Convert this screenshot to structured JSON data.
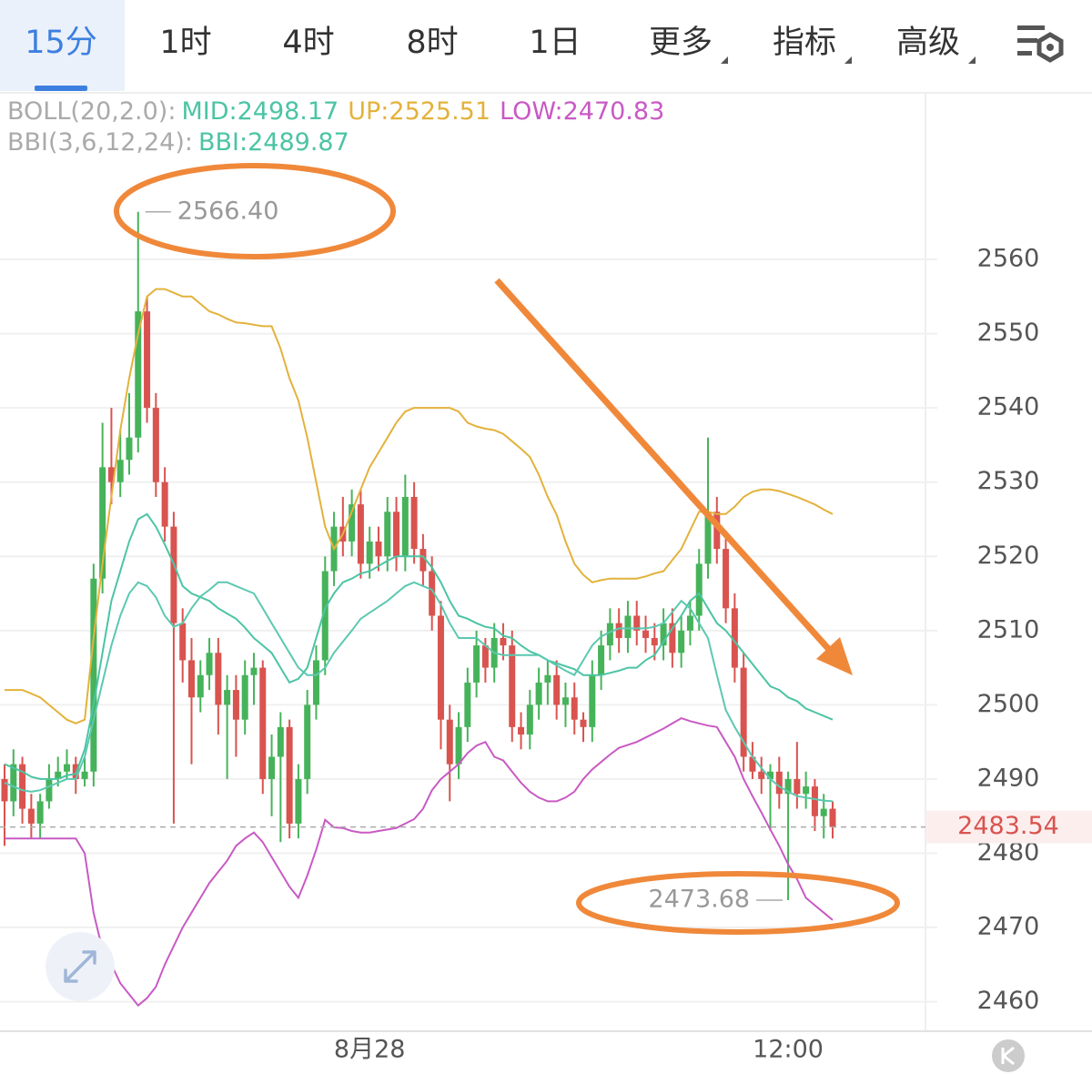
{
  "tabs": [
    "15分",
    "1时",
    "4时",
    "8时",
    "1日",
    "更多",
    "指标",
    "高级"
  ],
  "selected_tab": "15分",
  "menu_tabs": [
    "更多",
    "指标",
    "高级"
  ],
  "indicators": [
    {
      "label": "BOLL(20,2.0):",
      "items": [
        {
          "text": "MID:2498.17",
          "color": "#4cc4a4"
        },
        {
          "text": "UP:2525.51",
          "color": "#e3b23c"
        },
        {
          "text": "LOW:2470.83",
          "color": "#c85ac4"
        }
      ]
    },
    {
      "label": "BBI(3,6,12,24):",
      "items": [
        {
          "text": "BBI:2489.87",
          "color": "#4cc4a4"
        }
      ]
    }
  ],
  "chart_data": {
    "type": "candlestick",
    "categories": [
      null,
      null,
      null,
      null,
      null,
      null,
      null,
      null,
      null,
      null,
      null,
      null,
      null,
      null,
      null,
      null,
      null,
      null,
      null,
      null,
      null,
      null,
      null,
      null,
      null,
      null,
      null,
      null,
      null,
      null,
      null,
      null,
      null,
      null,
      null,
      null,
      null,
      null,
      null,
      null,
      null,
      "8月28",
      null,
      null,
      null,
      null,
      null,
      null,
      null,
      null,
      null,
      null,
      null,
      null,
      null,
      null,
      null,
      null,
      null,
      null,
      null,
      null,
      null,
      null,
      null,
      null,
      null,
      null,
      null,
      null,
      null,
      null,
      null,
      null,
      null,
      null,
      null,
      null,
      null,
      null,
      null,
      null,
      null,
      null,
      null,
      null,
      null,
      null,
      "12:00",
      null,
      null,
      null,
      null,
      null
    ],
    "open": [
      2490,
      2487,
      2492,
      2486,
      2484,
      2487,
      2490,
      2491,
      2492,
      2490,
      2491,
      2517,
      2532,
      2530,
      2533,
      2536,
      2553,
      2540,
      2530,
      2524,
      2511,
      2506,
      2501,
      2504,
      2507,
      2500,
      2502,
      2498,
      2504,
      2505,
      2490,
      2493,
      2497,
      2484,
      2490,
      2500,
      2506,
      2518,
      2524,
      2522,
      2527,
      2519,
      2522,
      2520,
      2526,
      2520,
      2528,
      2521,
      2518,
      2512,
      2498,
      2492,
      2497,
      2503,
      2508,
      2505,
      2509,
      2508,
      2497,
      2496,
      2500,
      2503,
      2504,
      2500,
      2501,
      2498,
      2497,
      2504,
      2508,
      2511,
      2509,
      2512,
      2510,
      2509,
      2508,
      2511,
      2507,
      2510,
      2512,
      2519,
      2526,
      2521,
      2513,
      2505,
      2493,
      2491,
      2490,
      2491,
      2488,
      2490,
      2488,
      2489,
      2485,
      2486
    ],
    "high": [
      2492,
      2494,
      2493,
      2488,
      2488,
      2492,
      2493,
      2494,
      2493,
      2493,
      2519,
      2538,
      2540,
      2537,
      2542,
      2566.4,
      2555,
      2542,
      2532,
      2526,
      2513,
      2509,
      2506,
      2509,
      2509,
      2504,
      2504,
      2506,
      2507,
      2506,
      2496,
      2499,
      2498,
      2492,
      2502,
      2508,
      2520,
      2526,
      2528,
      2529,
      2529,
      2524,
      2524,
      2528,
      2528,
      2531,
      2530,
      2523,
      2520,
      2514,
      2500,
      2499,
      2505,
      2510,
      2509,
      2511,
      2511,
      2510,
      2499,
      2502,
      2505,
      2506,
      2506,
      2503,
      2503,
      2499,
      2506,
      2510,
      2513,
      2513,
      2514,
      2514,
      2512,
      2511,
      2513,
      2513,
      2512,
      2514,
      2521,
      2536,
      2528,
      2523,
      2515,
      2507,
      2495,
      2493,
      2492,
      2493,
      2491,
      2495,
      2491,
      2490,
      2488,
      2487
    ],
    "low": [
      2481,
      2485,
      2484,
      2482,
      2482,
      2486,
      2489,
      2490,
      2488,
      2489,
      2489,
      2515,
      2527,
      2528,
      2531,
      2534,
      2538,
      2528,
      2522,
      2484,
      2503,
      2492,
      2499,
      2502,
      2496,
      2490,
      2493,
      2496,
      2500,
      2488,
      2485,
      2481.5,
      2482,
      2482,
      2488,
      2498,
      2504,
      2516,
      2520,
      2520,
      2517,
      2517,
      2518,
      2518,
      2518,
      2518,
      2519,
      2516,
      2510,
      2494,
      2487,
      2490,
      2495,
      2501,
      2503,
      2503,
      2506,
      2495,
      2494,
      2494,
      2498,
      2500,
      2498,
      2497,
      2496,
      2495,
      2495,
      2502,
      2506,
      2507,
      2507,
      2508,
      2507,
      2506,
      2506,
      2505,
      2505,
      2508,
      2510,
      2517,
      2519,
      2511,
      2503,
      2491,
      2490,
      2488,
      2483,
      2486,
      2473.68,
      2486,
      2486,
      2483,
      2482,
      2482
    ],
    "close": [
      2487,
      2492,
      2486,
      2484,
      2487,
      2490,
      2491,
      2492,
      2490,
      2491,
      2517,
      2532,
      2530,
      2533,
      2536,
      2553,
      2540,
      2530,
      2524,
      2511,
      2506,
      2501,
      2504,
      2507,
      2500,
      2502,
      2498,
      2504,
      2505,
      2490,
      2493,
      2497,
      2484,
      2490,
      2500,
      2506,
      2518,
      2524,
      2522,
      2527,
      2519,
      2522,
      2520,
      2526,
      2520,
      2528,
      2521,
      2518,
      2512,
      2498,
      2492,
      2497,
      2503,
      2508,
      2505,
      2509,
      2508,
      2497,
      2496,
      2500,
      2503,
      2504,
      2500,
      2501,
      2498,
      2497,
      2504,
      2508,
      2511,
      2509,
      2512,
      2510,
      2509,
      2508,
      2511,
      2507,
      2510,
      2512,
      2519,
      2526,
      2521,
      2513,
      2505,
      2493,
      2491,
      2490,
      2491,
      2488,
      2490,
      2488,
      2489,
      2485,
      2486,
      2483.54
    ],
    "up_color": "#46b35a",
    "down_color": "#d9534f",
    "series": [
      {
        "color": "#e3b23c",
        "values": [
          2502,
          2502,
          2502,
          2501.5,
          2501,
          2500,
          2499,
          2498,
          2497.5,
          2498,
          2509,
          2519,
          2528,
          2537,
          2544,
          2550,
          2555,
          2556,
          2556,
          2555.5,
          2555,
          2555,
          2554,
          2553,
          2552.6,
          2552,
          2551.5,
          2551.4,
          2551.2,
          2551,
          2551,
          2548,
          2544,
          2541,
          2536,
          2530,
          2524,
          2521,
          2523,
          2526,
          2529,
          2532,
          2534,
          2536,
          2538,
          2539.5,
          2540,
          2540,
          2540,
          2540,
          2540,
          2539.5,
          2538,
          2537.5,
          2537.2,
          2537,
          2536.5,
          2535.5,
          2534.5,
          2533.4,
          2531,
          2528,
          2525.6,
          2522,
          2519,
          2517.5,
          2516.5,
          2516.8,
          2517,
          2517,
          2517,
          2517,
          2517.3,
          2517.7,
          2518,
          2519.5,
          2521,
          2523.5,
          2526,
          2526,
          2525.7,
          2525.7,
          2526.7,
          2528,
          2528.7,
          2529,
          2529,
          2528.8,
          2528.4,
          2528,
          2527.5,
          2527,
          2526.3,
          2525.7
        ]
      },
      {
        "color": "#4cc4a4",
        "values": [
          2492,
          2491.5,
          2491,
          2490.3,
          2490,
          2490,
          2490,
          2490.5,
          2490.7,
          2494,
          2500,
          2507,
          2514,
          2518,
          2522,
          2525,
          2525.7,
          2524,
          2521.6,
          2519,
          2516,
          2515,
          2514.5,
          2514,
          2513,
          2512.3,
          2511.6,
          2510.4,
          2509,
          2508,
          2507,
          2505,
          2503,
          2503.5,
          2505,
          2509,
          2513,
          2515,
          2516.5,
          2517,
          2517.7,
          2518,
          2518.7,
          2519.4,
          2520,
          2520,
          2520,
          2520,
          2518.5,
          2516.5,
          2514,
          2512,
          2511.6,
          2511,
          2510.5,
          2510.3,
          2509.3,
          2509,
          2508,
          2507.2,
          2506.7,
          2506,
          2505.6,
          2505.2,
          2504.8,
          2504,
          2504,
          2504,
          2504.3,
          2504.6,
          2505,
          2505,
          2506,
          2506.7,
          2508.5,
          2510.3,
          2512,
          2514,
          2515,
          2513,
          2511,
          2510,
          2508.5,
          2507,
          2505.5,
          2504,
          2502.5,
          2502,
          2501,
          2500.5,
          2499.5,
          2499,
          2498.5,
          2498
        ]
      },
      {
        "color": "#c85ac4",
        "values": [
          2482,
          2482,
          2482,
          2482,
          2482,
          2482,
          2482,
          2482,
          2482,
          2480,
          2472,
          2467,
          2465,
          2462.5,
          2461,
          2459.5,
          2460.5,
          2462,
          2465,
          2467.5,
          2470,
          2472,
          2474,
          2476,
          2477.5,
          2479,
          2481,
          2482,
          2482.8,
          2481.5,
          2479.5,
          2477.5,
          2475.5,
          2474,
          2477,
          2480.5,
          2484.5,
          2483.5,
          2483.4,
          2483,
          2482.8,
          2482.8,
          2483,
          2483.2,
          2483.4,
          2484,
          2484.6,
          2486,
          2488.5,
          2490,
          2491,
          2492,
          2493.5,
          2494.5,
          2495,
          2493,
          2492.5,
          2491,
          2489.5,
          2488.3,
          2487.5,
          2487,
          2487,
          2487.5,
          2488.3,
          2490,
          2491.3,
          2492.3,
          2493.3,
          2494.2,
          2494.6,
          2495,
          2495.6,
          2496.2,
          2496.8,
          2497.5,
          2498.2,
          2497.8,
          2497.5,
          2497.2,
          2497,
          2495,
          2493,
          2490,
          2487.7,
          2485.5,
          2483.2,
          2481,
          2478.5,
          2476.5,
          2474,
          2473,
          2472,
          2471
        ]
      },
      {
        "color": "#5cc8b0",
        "values": [
          2489.5,
          2489,
          2488.5,
          2488.3,
          2488.5,
          2489,
          2489.5,
          2490,
          2490,
          2493,
          2498,
          2503,
          2508,
          2512,
          2515,
          2516.5,
          2516,
          2514.5,
          2512,
          2510.5,
          2511,
          2513,
          2514.6,
          2515.5,
          2516.5,
          2516.5,
          2516,
          2515.5,
          2515,
          2513,
          2511,
          2509,
          2507,
          2505,
          2504,
          2504,
          2505,
          2507,
          2508.5,
          2510,
          2511.6,
          2512.4,
          2513.2,
          2514,
          2515,
          2516,
          2516.5,
          2516,
          2515.5,
          2513.5,
          2511,
          2509,
          2509,
          2509,
          2508,
          2507,
          2506.7,
          2506.7,
          2506.7,
          2506.7,
          2506.7,
          2506,
          2505.3,
          2504.6,
          2504,
          2506,
          2508,
          2509.2,
          2509.8,
          2510.3,
          2510.3,
          2510.3,
          2510.3,
          2510.5,
          2511,
          2512.5,
          2514,
          2513,
          2511,
          2509,
          2504,
          2499.3,
          2497,
          2495,
          2493,
          2491.5,
          2490,
          2489,
          2488.3,
          2487.7,
          2487.5,
          2487.3,
          2487.1,
          2487
        ]
      }
    ],
    "ylim": [
      2456.03,
      2582.07
    ],
    "yticks": [
      2460,
      2470,
      2480,
      2490,
      2500,
      2510,
      2520,
      2530,
      2540,
      2550,
      2560
    ],
    "grid": true,
    "last_price": 2483.54,
    "max_label": {
      "value": 2566.4,
      "label": "2566.40"
    },
    "min_label": {
      "value": 2473.68,
      "label": "2473.68"
    }
  }
}
